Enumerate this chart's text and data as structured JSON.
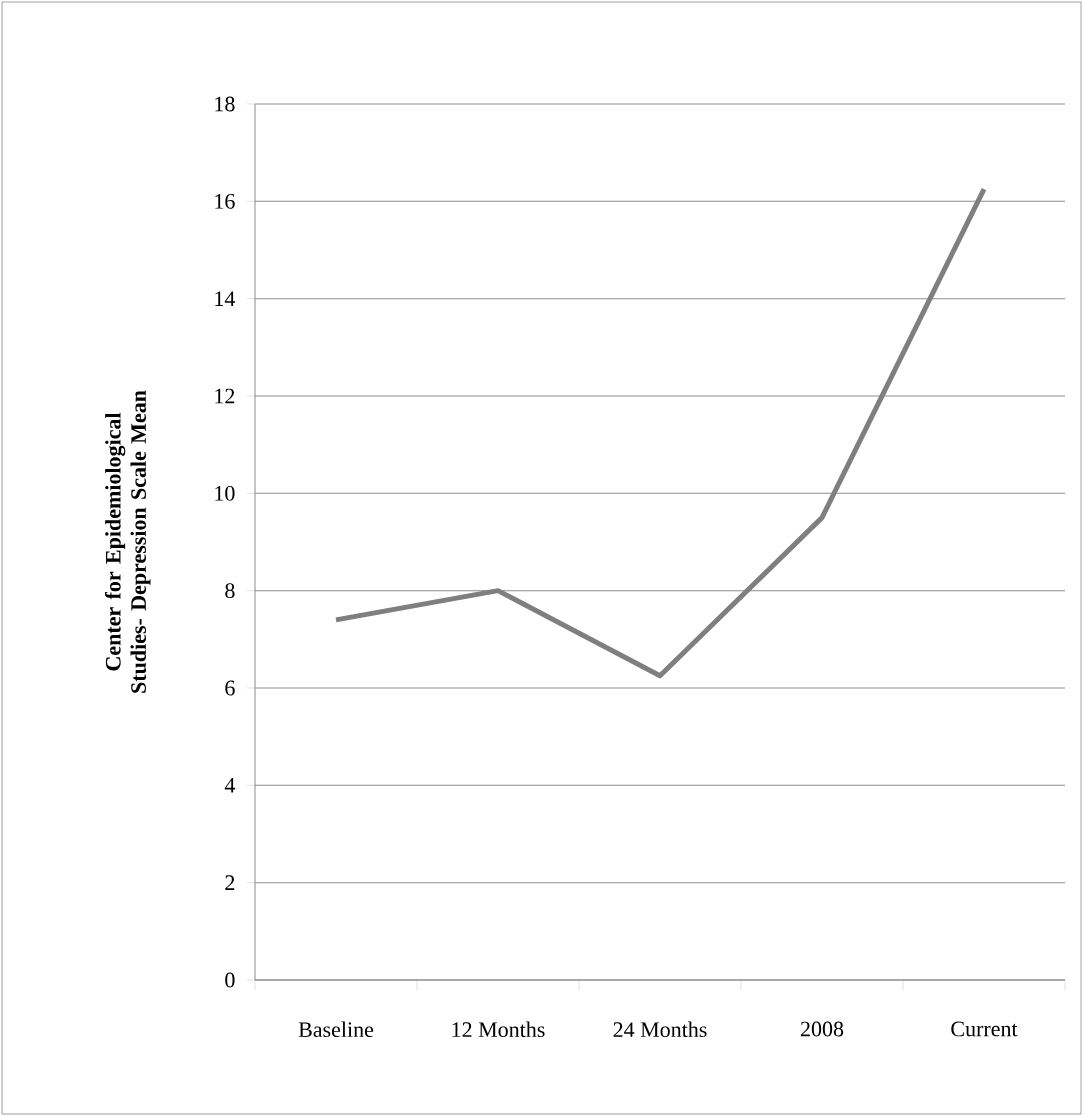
{
  "chart_data": {
    "type": "line",
    "ylabel": "Center for Epidemiological Studies- Depression Scale Mean",
    "categories": [
      "Baseline",
      "12 Months",
      "24 Months",
      "2008",
      "Current"
    ],
    "series": [
      {
        "color": "#7f7f7f",
        "values": [
          7.4,
          8.0,
          6.25,
          9.5,
          16.25
        ]
      }
    ],
    "ylim": [
      0,
      18
    ],
    "yticks": [
      0,
      2,
      4,
      6,
      8,
      10,
      12,
      14,
      16,
      18
    ],
    "grid": "y",
    "marker": "none",
    "line_style": "solid"
  }
}
